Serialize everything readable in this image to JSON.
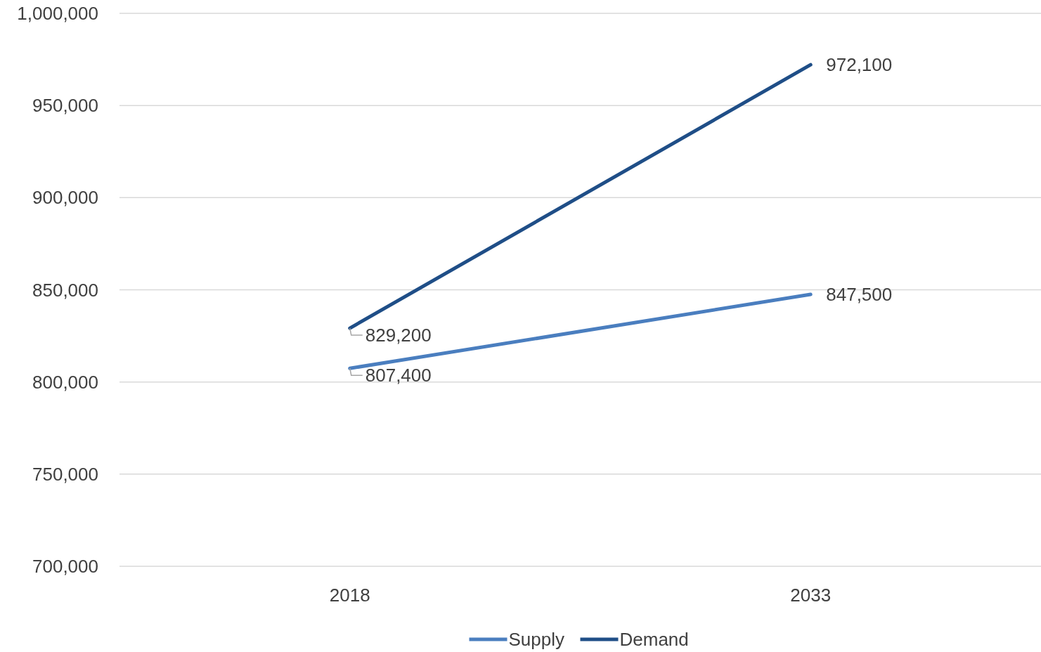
{
  "chart_data": {
    "type": "line",
    "categories": [
      "2018",
      "2033"
    ],
    "series": [
      {
        "name": "Supply",
        "color": "#4a7ebf",
        "values": [
          807400,
          847500
        ],
        "value_labels": [
          "807,400",
          "847,500"
        ]
      },
      {
        "name": "Demand",
        "color": "#1f4e87",
        "values": [
          829200,
          972100
        ],
        "value_labels": [
          "829,200",
          "972,100"
        ]
      }
    ],
    "ylim": [
      700000,
      1000000
    ],
    "yticks": [
      {
        "value": 700000,
        "label": "700,000"
      },
      {
        "value": 750000,
        "label": "750,000"
      },
      {
        "value": 800000,
        "label": "800,000"
      },
      {
        "value": 850000,
        "label": "850,000"
      },
      {
        "value": 900000,
        "label": "900,000"
      },
      {
        "value": 950000,
        "label": "950,000"
      },
      {
        "value": 1000000,
        "label": "1,000,000"
      }
    ],
    "grid": "y",
    "legend": "bottom",
    "marker": "none",
    "line_style": "solid"
  }
}
